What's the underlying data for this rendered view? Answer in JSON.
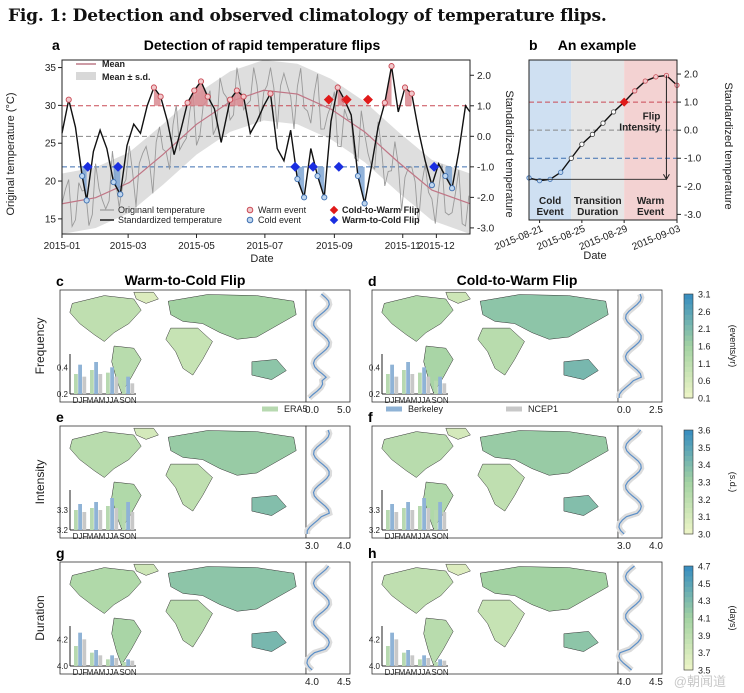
{
  "figure_title": "Fig. 1: Detection and observed climatology of temperature flips.",
  "watermark": "@朝闻道",
  "panel_a": {
    "letter": "a",
    "title": "Detection of rapid temperature flips",
    "ylabel_left": "Original temperature (°C)",
    "ylabel_right": "Standardized temperature",
    "xlabel": "Date",
    "x_ticks": [
      "2015-01",
      "2015-03",
      "2015-05",
      "2015-07",
      "2015-09",
      "2015-11",
      "2015-12"
    ],
    "y_left_ticks": [
      "15",
      "20",
      "25",
      "30",
      "35"
    ],
    "y_right_ticks": [
      "-3.0",
      "-2.0",
      "-1.0",
      "0.0",
      "1.0",
      "2.0"
    ],
    "legend_top": [
      "Mean",
      "Mean ± s.d."
    ],
    "legend_bottom": [
      "Originanl temperature",
      "Standardized temperature",
      "Warm event",
      "Cold event",
      "Cold-to-Warm Flip",
      "Warm-to-Cold Flip"
    ]
  },
  "panel_b": {
    "letter": "b",
    "title": "An example",
    "ylabel_right": "Standardized temperature",
    "xlabel": "Date",
    "x_ticks": [
      "2015-08-21",
      "2015-08-25",
      "2015-08-29",
      "2015-09-03"
    ],
    "y_ticks": [
      "-3.0",
      "-2.0",
      "-1.0",
      "0.0",
      "1.0",
      "2.0"
    ],
    "region_labels": [
      "Cold\nEvent",
      "Transition\nDuration",
      "Warm\nEvent"
    ],
    "annotation": "Flip\nIntensity"
  },
  "maps": {
    "col_titles": [
      "Warm-to-Cold Flip",
      "Cold-to-Warm Flip"
    ],
    "row_labels": [
      "Frequency",
      "Intensity",
      "Duration"
    ],
    "letters": [
      "c",
      "d",
      "e",
      "f",
      "g",
      "h"
    ],
    "season_labels": [
      "DJF",
      "MAM",
      "JJA",
      "SON"
    ],
    "legend": [
      "ERA5",
      "Berkeley",
      "NCEP1"
    ],
    "inset_y_ticks": [
      [
        "0.2",
        "0.4"
      ],
      [
        "3.2",
        "3.3"
      ],
      [
        "4.0",
        "4.2"
      ]
    ],
    "profile_x_ticks": [
      [
        "0.0",
        "5.0"
      ],
      [
        "0.0",
        "2.5"
      ],
      [
        "3.0",
        "4.0"
      ],
      [
        "3.0",
        "4.0"
      ],
      [
        "4.0",
        "4.5"
      ],
      [
        "4.0",
        "4.5"
      ]
    ],
    "colorbars": [
      {
        "unit": "(events/yr)",
        "ticks": [
          "3.1",
          "2.6",
          "2.1",
          "1.6",
          "1.1",
          "0.6",
          "0.1"
        ]
      },
      {
        "unit": "(s.d.)",
        "ticks": [
          "3.6",
          "3.5",
          "3.4",
          "3.3",
          "3.2",
          "3.1",
          "3.0"
        ]
      },
      {
        "unit": "(days)",
        "ticks": [
          "4.7",
          "4.5",
          "4.3",
          "4.1",
          "3.9",
          "3.7",
          "3.5"
        ]
      }
    ]
  },
  "colors": {
    "warm": "#c94a55",
    "cold": "#3d6fb0",
    "era5": "#b7d9b0",
    "berkeley": "#8fb3d6",
    "ncep1": "#c8c8c8",
    "land_lo": "#eaf3c5",
    "land_hi": "#3a8fbf"
  },
  "chart_data": [
    {
      "type": "line",
      "title": "Detection of rapid temperature flips",
      "xlabel": "Date",
      "ylabel": "Original temperature (°C)",
      "y2label": "Standardized temperature",
      "x_range": [
        "2015-01-01",
        "2015-12-31"
      ],
      "ylim": [
        13,
        36
      ],
      "y2lim": [
        -3.2,
        2.5
      ],
      "thresholds_std": [
        1.0,
        0.0,
        -1.0
      ],
      "series": [
        {
          "name": "Mean",
          "x_day": [
            0,
            30,
            60,
            90,
            120,
            150,
            180,
            210,
            240,
            270,
            300,
            330,
            364
          ],
          "values": [
            17,
            17.8,
            19.8,
            23.5,
            27.5,
            30.5,
            32,
            31.5,
            29.5,
            26.5,
            22.5,
            18.8,
            17
          ]
        },
        {
          "name": "Standardized temperature",
          "x_day": [
            0,
            6,
            12,
            18,
            22,
            28,
            34,
            40,
            46,
            52,
            58,
            64,
            70,
            76,
            82,
            88,
            94,
            100,
            106,
            112,
            118,
            124,
            130,
            136,
            142,
            150,
            156,
            162,
            168,
            174,
            180,
            186,
            192,
            198,
            204,
            210,
            216,
            222,
            228,
            234,
            240,
            246,
            252,
            258,
            264,
            270,
            276,
            282,
            288,
            294,
            300,
            306,
            312,
            318,
            324,
            330,
            336,
            342,
            348,
            354,
            360,
            364
          ],
          "values": [
            0.1,
            1.2,
            0.3,
            -1.3,
            -2.1,
            -0.5,
            0.2,
            -0.4,
            -1.5,
            -1.9,
            -0.3,
            0.4,
            0.1,
            1.0,
            1.6,
            1.3,
            0.5,
            -0.6,
            0.2,
            1.1,
            1.5,
            1.8,
            1.3,
            0.9,
            -0.2,
            1.2,
            1.5,
            1.3,
            0.1,
            0.5,
            1.0,
            1.4,
            -0.4,
            -0.8,
            0.2,
            -1.4,
            -2.0,
            -0.4,
            -1.3,
            -2.0,
            0.5,
            1.6,
            1.2,
            0.7,
            -1.3,
            -2.2,
            -1.0,
            0.3,
            1.1,
            2.3,
            0.8,
            1.6,
            1.4,
            0.2,
            -0.8,
            -1.6,
            -0.9,
            -1.3,
            -1.7,
            -0.5,
            1.0,
            0.8
          ]
        }
      ],
      "flips": {
        "Cold-to-Warm Flip": [
          "2015-08-27",
          "2015-09-12",
          "2015-10-01"
        ],
        "Warm-to-Cold Flip": [
          "2015-01-24",
          "2015-02-20",
          "2015-07-28",
          "2015-08-13",
          "2015-09-05",
          "2015-11-29"
        ]
      }
    },
    {
      "type": "line",
      "title": "An example",
      "xlabel": "Date",
      "ylabel": "Standardized temperature",
      "x": [
        "2015-08-20",
        "2015-08-21",
        "2015-08-22",
        "2015-08-23",
        "2015-08-24",
        "2015-08-25",
        "2015-08-26",
        "2015-08-27",
        "2015-08-28",
        "2015-08-29",
        "2015-08-30",
        "2015-08-31",
        "2015-09-01",
        "2015-09-02",
        "2015-09-03"
      ],
      "values": [
        -1.7,
        -1.8,
        -1.75,
        -1.5,
        -1.0,
        -0.5,
        -0.15,
        0.25,
        0.65,
        1.0,
        1.4,
        1.75,
        1.9,
        1.95,
        1.6
      ],
      "ylim": [
        -3.2,
        2.5
      ],
      "regions": {
        "Cold Event": [
          "2015-08-20",
          "2015-08-24"
        ],
        "Transition Duration": [
          "2015-08-24",
          "2015-08-29"
        ],
        "Warm Event": [
          "2015-08-29",
          "2015-09-03"
        ]
      }
    },
    {
      "type": "bar",
      "title": "Frequency insets",
      "categories": [
        "DJF",
        "MAM",
        "JJA",
        "SON"
      ],
      "series": [
        {
          "name": "ERA5",
          "values": [
            0.35,
            0.38,
            0.36,
            0.3
          ]
        },
        {
          "name": "Berkeley",
          "values": [
            0.42,
            0.44,
            0.4,
            0.33
          ]
        },
        {
          "name": "NCEP1",
          "values": [
            0.33,
            0.35,
            0.33,
            0.28
          ]
        }
      ],
      "ylim": [
        0.2,
        0.5
      ]
    },
    {
      "type": "bar",
      "title": "Intensity insets",
      "categories": [
        "DJF",
        "MAM",
        "JJA",
        "SON"
      ],
      "series": [
        {
          "name": "ERA5",
          "values": [
            3.3,
            3.31,
            3.32,
            3.3
          ]
        },
        {
          "name": "Berkeley",
          "values": [
            3.33,
            3.34,
            3.36,
            3.34
          ]
        },
        {
          "name": "NCEP1",
          "values": [
            3.29,
            3.3,
            3.31,
            3.29
          ]
        }
      ],
      "ylim": [
        3.2,
        3.4
      ]
    },
    {
      "type": "bar",
      "title": "Duration insets",
      "categories": [
        "DJF",
        "MAM",
        "JJA",
        "SON"
      ],
      "series": [
        {
          "name": "ERA5",
          "values": [
            4.15,
            4.1,
            4.05,
            4.03
          ]
        },
        {
          "name": "Berkeley",
          "values": [
            4.25,
            4.12,
            4.08,
            4.05
          ]
        },
        {
          "name": "NCEP1",
          "values": [
            4.2,
            4.08,
            4.06,
            4.04
          ]
        }
      ],
      "ylim": [
        4.0,
        4.3
      ]
    }
  ]
}
